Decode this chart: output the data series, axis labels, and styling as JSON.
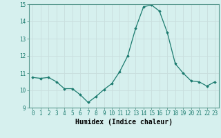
{
  "x": [
    0,
    1,
    2,
    3,
    4,
    5,
    6,
    7,
    8,
    9,
    10,
    11,
    12,
    13,
    14,
    15,
    16,
    17,
    18,
    19,
    20,
    21,
    22,
    23
  ],
  "y": [
    10.75,
    10.7,
    10.75,
    10.5,
    10.1,
    10.1,
    9.75,
    9.3,
    9.65,
    10.05,
    10.4,
    11.1,
    12.0,
    13.6,
    14.85,
    14.95,
    14.6,
    13.35,
    11.55,
    11.0,
    10.55,
    10.5,
    10.25,
    10.5
  ],
  "line_color": "#1a7a6e",
  "marker": "D",
  "marker_size": 1.8,
  "bg_color": "#d6f0ee",
  "grid_color": "#c8dedd",
  "xlabel": "Humidex (Indice chaleur)",
  "xlim": [
    -0.5,
    23.5
  ],
  "ylim": [
    9,
    15
  ],
  "yticks": [
    9,
    10,
    11,
    12,
    13,
    14,
    15
  ],
  "xticks": [
    0,
    1,
    2,
    3,
    4,
    5,
    6,
    7,
    8,
    9,
    10,
    11,
    12,
    13,
    14,
    15,
    16,
    17,
    18,
    19,
    20,
    21,
    22,
    23
  ],
  "tick_label_fontsize": 5.5,
  "xlabel_fontsize": 7.0,
  "line_width": 0.9
}
